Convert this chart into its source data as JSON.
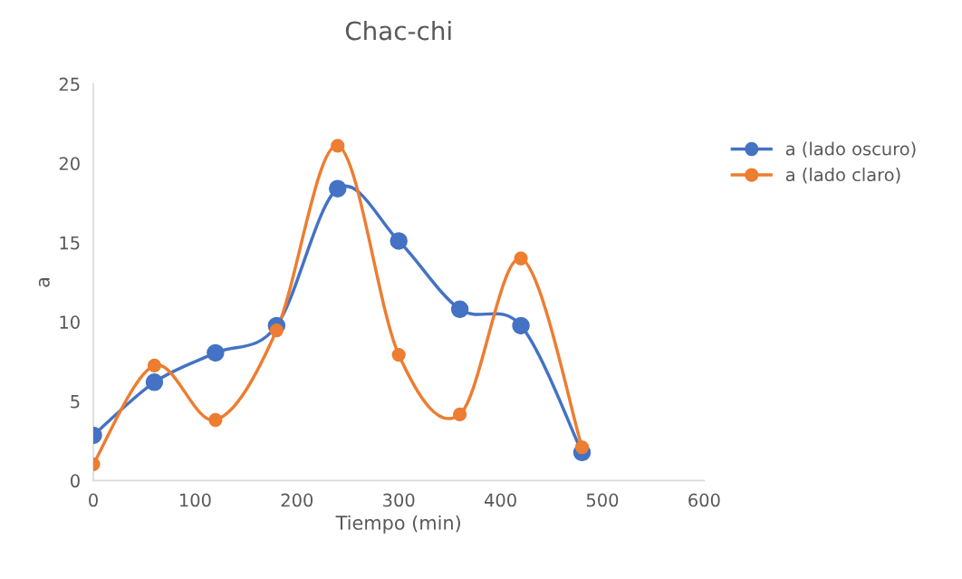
{
  "chart_data": {
    "type": "line",
    "title": "Chac-chi",
    "xlabel": "Tiempo (min)",
    "ylabel": "a",
    "x": [
      0,
      60,
      120,
      180,
      240,
      300,
      360,
      420,
      480
    ],
    "series": [
      {
        "name": "a (lado oscuro)",
        "color": "#4472c4",
        "values": [
          2.85,
          6.2,
          8.05,
          9.76,
          18.4,
          15.1,
          10.8,
          9.76,
          1.77
        ]
      },
      {
        "name": "a (lado claro)",
        "color": "#ed7d31",
        "values": [
          1.03,
          7.25,
          3.82,
          9.47,
          21.1,
          7.93,
          4.17,
          14.0,
          2.1
        ]
      }
    ],
    "xlim": [
      0,
      600
    ],
    "xticks": [
      0,
      100,
      200,
      300,
      400,
      500,
      600
    ],
    "ylim": [
      0,
      25
    ],
    "yticks": [
      0,
      5,
      10,
      15,
      20,
      25
    ],
    "grid": false,
    "legend": "right",
    "marker": "circle",
    "line_style": "solid"
  }
}
